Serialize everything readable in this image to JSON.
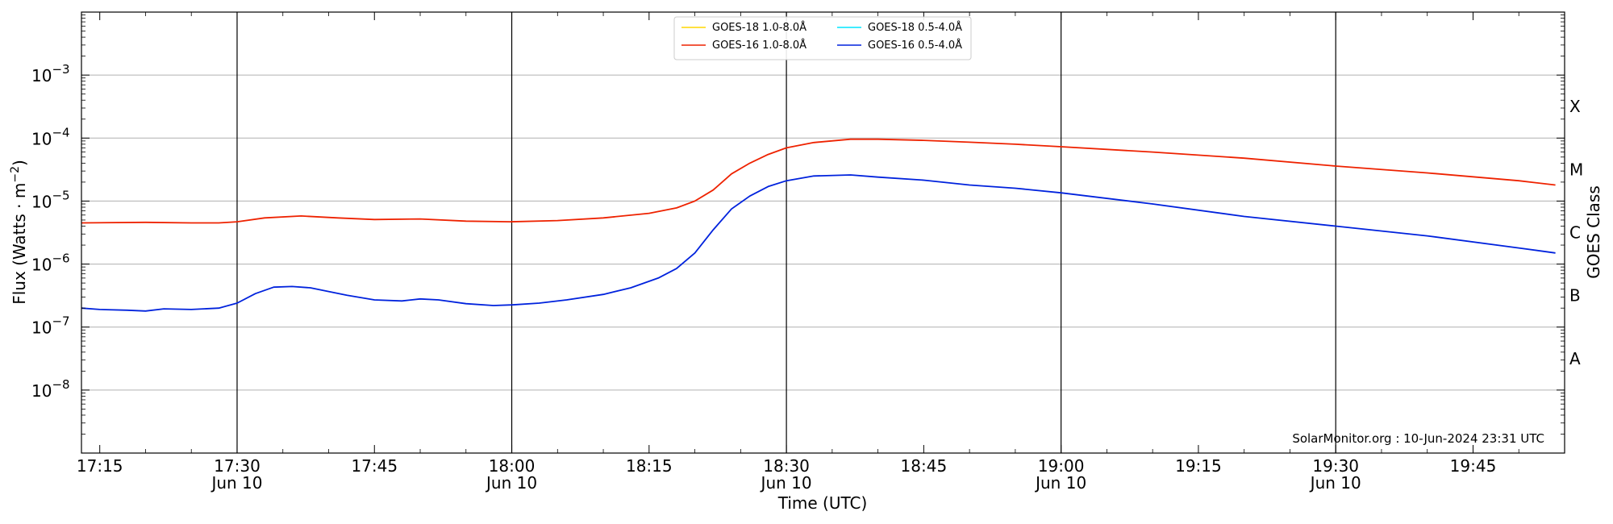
{
  "chart_data": {
    "type": "line",
    "xlabel": "Time (UTC)",
    "ylabel": "Flux (Watts · m⁻²)",
    "ylabel_right": "GOES Class",
    "credit": "SolarMonitor.org : 10-Jun-2024 23:31 UTC",
    "y_scale": "log",
    "ylim": [
      1e-09,
      0.01
    ],
    "xlim": [
      "17:13",
      "19:55"
    ],
    "grid": "horizontal",
    "legend_position": "top-center",
    "y_ticks": [
      {
        "value": 1e-08,
        "label": "10",
        "exp": "−8"
      },
      {
        "value": 1e-07,
        "label": "10",
        "exp": "−7"
      },
      {
        "value": 1e-06,
        "label": "10",
        "exp": "−6"
      },
      {
        "value": 1e-05,
        "label": "10",
        "exp": "−5"
      },
      {
        "value": 0.0001,
        "label": "10",
        "exp": "−4"
      },
      {
        "value": 0.001,
        "label": "10",
        "exp": "−3"
      }
    ],
    "classes": [
      {
        "label": "A",
        "value": 3.16e-08
      },
      {
        "label": "B",
        "value": 3.16e-07
      },
      {
        "label": "C",
        "value": 3.16e-06
      },
      {
        "label": "M",
        "value": 3.16e-05
      },
      {
        "label": "X",
        "value": 0.000316
      }
    ],
    "x_ticks": [
      {
        "time": "17:15",
        "label": "17:15",
        "date": ""
      },
      {
        "time": "17:30",
        "label": "17:30",
        "date": "Jun 10"
      },
      {
        "time": "17:45",
        "label": "17:45",
        "date": ""
      },
      {
        "time": "18:00",
        "label": "18:00",
        "date": "Jun 10"
      },
      {
        "time": "18:15",
        "label": "18:15",
        "date": ""
      },
      {
        "time": "18:30",
        "label": "18:30",
        "date": "Jun 10"
      },
      {
        "time": "18:45",
        "label": "18:45",
        "date": ""
      },
      {
        "time": "19:00",
        "label": "19:00",
        "date": "Jun 10"
      },
      {
        "time": "19:15",
        "label": "19:15",
        "date": ""
      },
      {
        "time": "19:30",
        "label": "19:30",
        "date": "Jun 10"
      },
      {
        "time": "19:45",
        "label": "19:45",
        "date": ""
      }
    ],
    "vertical_lines": [
      "17:30",
      "18:00",
      "18:30",
      "19:00",
      "19:30"
    ],
    "legend": [
      {
        "name": "GOES-18 1.0-8.0Å",
        "color": "#ffd700"
      },
      {
        "name": "GOES-18 0.5-4.0Å",
        "color": "#00e5ff"
      },
      {
        "name": "GOES-16 1.0-8.0Å",
        "color": "#ee2200"
      },
      {
        "name": "GOES-16 0.5-4.0Å",
        "color": "#0022dd"
      }
    ],
    "series": [
      {
        "name": "GOES-16 1.0-8.0Å",
        "color": "#ee2200",
        "points": [
          [
            "17:13",
            4.5e-06
          ],
          [
            "17:20",
            4.6e-06
          ],
          [
            "17:25",
            4.5e-06
          ],
          [
            "17:28",
            4.5e-06
          ],
          [
            "17:30",
            4.7e-06
          ],
          [
            "17:33",
            5.4e-06
          ],
          [
            "17:37",
            5.8e-06
          ],
          [
            "17:41",
            5.4e-06
          ],
          [
            "17:45",
            5.1e-06
          ],
          [
            "17:50",
            5.2e-06
          ],
          [
            "17:55",
            4.8e-06
          ],
          [
            "18:00",
            4.7e-06
          ],
          [
            "18:05",
            4.9e-06
          ],
          [
            "18:10",
            5.4e-06
          ],
          [
            "18:15",
            6.4e-06
          ],
          [
            "18:18",
            7.8e-06
          ],
          [
            "18:20",
            1e-05
          ],
          [
            "18:22",
            1.5e-05
          ],
          [
            "18:24",
            2.7e-05
          ],
          [
            "18:26",
            4e-05
          ],
          [
            "18:28",
            5.5e-05
          ],
          [
            "18:30",
            7e-05
          ],
          [
            "18:33",
            8.5e-05
          ],
          [
            "18:37",
            9.6e-05
          ],
          [
            "18:40",
            9.6e-05
          ],
          [
            "18:45",
            9.2e-05
          ],
          [
            "18:50",
            8.6e-05
          ],
          [
            "18:55",
            8e-05
          ],
          [
            "19:00",
            7.3e-05
          ],
          [
            "19:10",
            6e-05
          ],
          [
            "19:20",
            4.8e-05
          ],
          [
            "19:30",
            3.6e-05
          ],
          [
            "19:40",
            2.8e-05
          ],
          [
            "19:50",
            2.1e-05
          ],
          [
            "19:54",
            1.8e-05
          ]
        ]
      },
      {
        "name": "GOES-16 0.5-4.0Å",
        "color": "#0022dd",
        "points": [
          [
            "17:13",
            2e-07
          ],
          [
            "17:15",
            1.9e-07
          ],
          [
            "17:18",
            1.85e-07
          ],
          [
            "17:20",
            1.8e-07
          ],
          [
            "17:22",
            1.95e-07
          ],
          [
            "17:25",
            1.9e-07
          ],
          [
            "17:28",
            2e-07
          ],
          [
            "17:30",
            2.4e-07
          ],
          [
            "17:32",
            3.4e-07
          ],
          [
            "17:34",
            4.3e-07
          ],
          [
            "17:36",
            4.4e-07
          ],
          [
            "17:38",
            4.2e-07
          ],
          [
            "17:42",
            3.2e-07
          ],
          [
            "17:45",
            2.7e-07
          ],
          [
            "17:48",
            2.6e-07
          ],
          [
            "17:50",
            2.8e-07
          ],
          [
            "17:52",
            2.7e-07
          ],
          [
            "17:55",
            2.35e-07
          ],
          [
            "17:58",
            2.2e-07
          ],
          [
            "18:00",
            2.25e-07
          ],
          [
            "18:03",
            2.4e-07
          ],
          [
            "18:06",
            2.7e-07
          ],
          [
            "18:10",
            3.3e-07
          ],
          [
            "18:13",
            4.2e-07
          ],
          [
            "18:16",
            6e-07
          ],
          [
            "18:18",
            8.5e-07
          ],
          [
            "18:20",
            1.5e-06
          ],
          [
            "18:22",
            3.5e-06
          ],
          [
            "18:24",
            7.5e-06
          ],
          [
            "18:26",
            1.2e-05
          ],
          [
            "18:28",
            1.7e-05
          ],
          [
            "18:30",
            2.1e-05
          ],
          [
            "18:33",
            2.5e-05
          ],
          [
            "18:37",
            2.6e-05
          ],
          [
            "18:40",
            2.4e-05
          ],
          [
            "18:45",
            2.15e-05
          ],
          [
            "18:50",
            1.8e-05
          ],
          [
            "18:55",
            1.6e-05
          ],
          [
            "19:00",
            1.35e-05
          ],
          [
            "19:10",
            9e-06
          ],
          [
            "19:20",
            5.7e-06
          ],
          [
            "19:30",
            4e-06
          ],
          [
            "19:40",
            2.8e-06
          ],
          [
            "19:50",
            1.8e-06
          ],
          [
            "19:54",
            1.5e-06
          ]
        ]
      }
    ]
  }
}
